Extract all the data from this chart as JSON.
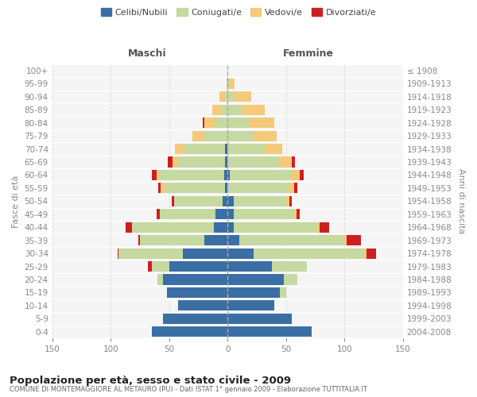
{
  "age_groups": [
    "0-4",
    "5-9",
    "10-14",
    "15-19",
    "20-24",
    "25-29",
    "30-34",
    "35-39",
    "40-44",
    "45-49",
    "50-54",
    "55-59",
    "60-64",
    "65-69",
    "70-74",
    "75-79",
    "80-84",
    "85-89",
    "90-94",
    "95-99",
    "100+"
  ],
  "birth_years": [
    "2004-2008",
    "1999-2003",
    "1994-1998",
    "1989-1993",
    "1984-1988",
    "1979-1983",
    "1974-1978",
    "1969-1973",
    "1964-1968",
    "1959-1963",
    "1954-1958",
    "1949-1953",
    "1944-1948",
    "1939-1943",
    "1934-1938",
    "1929-1933",
    "1924-1928",
    "1919-1923",
    "1914-1918",
    "1909-1913",
    "≤ 1908"
  ],
  "colors": {
    "celibi": "#3a6ea5",
    "coniugati": "#c5d9a0",
    "vedovi": "#f5c97a",
    "divorziati": "#cc2020"
  },
  "maschi": {
    "celibi": [
      65,
      55,
      42,
      52,
      55,
      50,
      38,
      20,
      12,
      10,
      4,
      2,
      3,
      2,
      2,
      0,
      0,
      0,
      0,
      0,
      0
    ],
    "coniugati": [
      0,
      0,
      0,
      0,
      5,
      15,
      55,
      55,
      70,
      48,
      42,
      52,
      55,
      40,
      35,
      20,
      10,
      5,
      2,
      0,
      0
    ],
    "vedovi": [
      0,
      0,
      0,
      0,
      0,
      0,
      0,
      0,
      0,
      0,
      0,
      3,
      3,
      5,
      8,
      10,
      10,
      8,
      5,
      1,
      0
    ],
    "divorziati": [
      0,
      0,
      0,
      0,
      0,
      3,
      1,
      1,
      5,
      3,
      2,
      2,
      4,
      4,
      0,
      0,
      1,
      0,
      0,
      0,
      0
    ]
  },
  "femmine": {
    "celibi": [
      72,
      55,
      40,
      45,
      48,
      38,
      22,
      10,
      5,
      5,
      5,
      0,
      2,
      0,
      0,
      0,
      0,
      0,
      0,
      0,
      0
    ],
    "coniugati": [
      0,
      0,
      0,
      5,
      12,
      30,
      95,
      90,
      72,
      52,
      45,
      52,
      52,
      45,
      32,
      22,
      18,
      12,
      5,
      2,
      0
    ],
    "vedovi": [
      0,
      0,
      0,
      0,
      0,
      0,
      2,
      2,
      2,
      2,
      3,
      5,
      8,
      10,
      15,
      20,
      22,
      20,
      15,
      4,
      0
    ],
    "divorziati": [
      0,
      0,
      0,
      0,
      0,
      0,
      8,
      12,
      8,
      3,
      2,
      3,
      3,
      3,
      0,
      0,
      0,
      0,
      0,
      0,
      0
    ]
  },
  "xlim": 150,
  "title": "Popolazione per età, sesso e stato civile - 2009",
  "subtitle": "COMUNE DI MONTEMAGGIORE AL METAURO (PU) - Dati ISTAT 1° gennaio 2009 - Elaborazione TUTTITALIA.IT",
  "xlabel_left": "Maschi",
  "xlabel_right": "Femmine",
  "ylabel_left": "Fasce di età",
  "ylabel_right": "Anni di nascita",
  "legend_labels": [
    "Celibi/Nubili",
    "Coniugati/e",
    "Vedovi/e",
    "Divorziati/e"
  ],
  "bg_color": "#ffffff",
  "plot_bg_color": "#f5f5f5",
  "grid_color": "#dddddd",
  "tick_color": "#888888"
}
